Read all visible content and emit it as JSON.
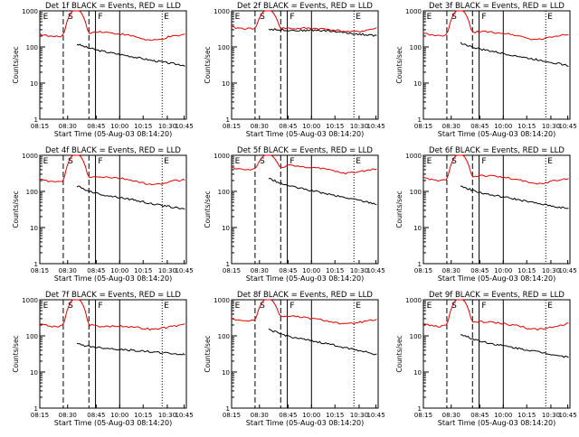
{
  "figure": {
    "title_template": "Det {n}f BLACK = Events, RED = LLD",
    "xlabel": "Start Time (05-Aug-03 08:14:20)",
    "ylabel": "Counts/sec",
    "colors": {
      "events": "#000000",
      "lld": "#e00000",
      "axis": "#000000",
      "background": "#ffffff"
    }
  },
  "chart_data": [
    {
      "type": "line",
      "detector": "1f",
      "title": "Det 1f BLACK = Events, RED = LLD",
      "xlabel": "Start Time (05-Aug-03 08:14:20)",
      "ylabel": "Counts/sec",
      "xlim": [
        "08:15",
        "10:52"
      ],
      "ylim": [
        1,
        1000
      ],
      "yscale": "log",
      "xticks": [
        "08:15",
        "08:30",
        "08:45",
        "10:00",
        "10:15",
        "10:30",
        "10:45"
      ],
      "yticks": [
        "1",
        "10",
        "100",
        "1000"
      ],
      "region_labels": [
        "E",
        "S",
        "F",
        "E"
      ],
      "series": [
        {
          "name": "Events",
          "color": "#000000",
          "start": "08:50",
          "values": [
            120,
            95,
            80,
            70,
            62,
            55,
            48,
            42,
            38,
            34,
            31
          ]
        },
        {
          "name": "LLD",
          "color": "#e00000",
          "values": [
            230,
            200,
            190,
            210,
            1000,
            1000,
            230,
            270,
            260,
            240,
            230,
            210,
            190,
            160,
            150,
            160,
            190,
            200,
            220
          ]
        }
      ]
    },
    {
      "type": "line",
      "detector": "2f",
      "title": "Det 2f BLACK = Events, RED = LLD",
      "xlabel": "Start Time (05-Aug-03 08:14:20)",
      "ylabel": "Counts/sec",
      "xlim": [
        "08:15",
        "10:52"
      ],
      "ylim": [
        1,
        1000
      ],
      "yscale": "log",
      "xticks": [
        "08:15",
        "08:30",
        "08:45",
        "10:00",
        "10:15",
        "10:30",
        "10:45"
      ],
      "yticks": [
        "1",
        "10",
        "100",
        "1000"
      ],
      "region_labels": [
        "E",
        "S",
        "F",
        "E"
      ],
      "series": [
        {
          "name": "Events",
          "color": "#000000",
          "start": "08:50",
          "values": [
            310,
            300,
            290,
            285,
            290,
            285,
            270,
            250,
            230,
            220,
            205
          ]
        },
        {
          "name": "LLD",
          "color": "#e00000",
          "values": [
            350,
            330,
            320,
            330,
            1000,
            1000,
            330,
            330,
            320,
            330,
            330,
            320,
            310,
            290,
            270,
            260,
            270,
            300,
            330
          ]
        }
      ]
    },
    {
      "type": "line",
      "detector": "3f",
      "title": "Det 3f BLACK = Events, RED = LLD",
      "xlabel": "Start Time (05-Aug-03 08:14:20)",
      "ylabel": "Counts/sec",
      "xlim": [
        "08:15",
        "10:52"
      ],
      "ylim": [
        1,
        1000
      ],
      "yscale": "log",
      "xticks": [
        "08:15",
        "08:30",
        "08:45",
        "10:00",
        "10:15",
        "10:30",
        "10:45"
      ],
      "yticks": [
        "1",
        "10",
        "100",
        "1000"
      ],
      "region_labels": [
        "E",
        "S",
        "F",
        "E"
      ],
      "series": [
        {
          "name": "Events",
          "color": "#000000",
          "start": "08:50",
          "values": [
            130,
            100,
            85,
            75,
            65,
            58,
            50,
            45,
            40,
            35,
            30
          ]
        },
        {
          "name": "LLD",
          "color": "#e00000",
          "values": [
            240,
            210,
            200,
            220,
            1000,
            1000,
            240,
            270,
            260,
            250,
            240,
            220,
            200,
            170,
            160,
            170,
            190,
            210,
            230
          ]
        }
      ]
    },
    {
      "type": "line",
      "detector": "4f",
      "title": "Det 4f BLACK = Events, RED = LLD",
      "xlabel": "Start Time (05-Aug-03 08:14:20)",
      "ylabel": "Counts/sec",
      "xlim": [
        "08:15",
        "10:52"
      ],
      "ylim": [
        1,
        1000
      ],
      "yscale": "log",
      "xticks": [
        "08:15",
        "08:30",
        "08:45",
        "10:00",
        "10:15",
        "10:30",
        "10:45"
      ],
      "yticks": [
        "1",
        "10",
        "100",
        "1000"
      ],
      "region_labels": [
        "E",
        "S",
        "F",
        "E"
      ],
      "series": [
        {
          "name": "Events",
          "color": "#000000",
          "start": "08:50",
          "values": [
            140,
            105,
            85,
            75,
            68,
            60,
            52,
            45,
            40,
            36,
            32
          ]
        },
        {
          "name": "LLD",
          "color": "#e00000",
          "values": [
            220,
            190,
            180,
            200,
            1000,
            1000,
            230,
            260,
            250,
            240,
            230,
            210,
            190,
            165,
            150,
            160,
            185,
            200,
            215
          ]
        }
      ]
    },
    {
      "type": "line",
      "detector": "5f",
      "title": "Det 5f BLACK = Events, RED = LLD",
      "xlabel": "Start Time (05-Aug-03 08:14:20)",
      "ylabel": "Counts/sec",
      "xlim": [
        "08:15",
        "10:52"
      ],
      "ylim": [
        1,
        1000
      ],
      "yscale": "log",
      "xticks": [
        "08:15",
        "08:30",
        "08:45",
        "10:00",
        "10:15",
        "10:30",
        "10:45"
      ],
      "yticks": [
        "1",
        "10",
        "100",
        "1000"
      ],
      "region_labels": [
        "E",
        "S",
        "F",
        "E"
      ],
      "series": [
        {
          "name": "Events",
          "color": "#000000",
          "start": "08:50",
          "values": [
            230,
            170,
            140,
            120,
            105,
            90,
            78,
            68,
            60,
            52,
            45
          ]
        },
        {
          "name": "LLD",
          "color": "#e00000",
          "values": [
            450,
            420,
            400,
            430,
            1000,
            1000,
            450,
            520,
            500,
            480,
            460,
            430,
            400,
            350,
            320,
            330,
            360,
            390,
            420
          ]
        }
      ]
    },
    {
      "type": "line",
      "detector": "6f",
      "title": "Det 6f BLACK = Events, RED = LLD",
      "xlabel": "Start Time (05-Aug-03 08:14:20)",
      "ylabel": "Counts/sec",
      "xlim": [
        "08:15",
        "10:52"
      ],
      "ylim": [
        1,
        1000
      ],
      "yscale": "log",
      "xticks": [
        "08:15",
        "08:30",
        "08:45",
        "10:00",
        "10:15",
        "10:30",
        "10:45"
      ],
      "yticks": [
        "1",
        "10",
        "100",
        "1000"
      ],
      "region_labels": [
        "E",
        "S",
        "F",
        "E"
      ],
      "series": [
        {
          "name": "Events",
          "color": "#000000",
          "start": "08:50",
          "values": [
            140,
            110,
            90,
            78,
            70,
            62,
            54,
            47,
            42,
            37,
            33
          ]
        },
        {
          "name": "LLD",
          "color": "#e00000",
          "values": [
            240,
            210,
            200,
            220,
            1000,
            1000,
            250,
            280,
            270,
            260,
            245,
            225,
            205,
            175,
            160,
            170,
            195,
            210,
            230
          ]
        }
      ]
    },
    {
      "type": "line",
      "detector": "7f",
      "title": "Det 7f BLACK = Events, RED = LLD",
      "xlabel": "Start Time (05-Aug-03 08:14:20)",
      "ylabel": "Counts/sec",
      "xlim": [
        "08:15",
        "10:52"
      ],
      "ylim": [
        1,
        1000
      ],
      "yscale": "log",
      "xticks": [
        "08:15",
        "08:30",
        "08:45",
        "10:00",
        "10:15",
        "10:30",
        "10:45"
      ],
      "yticks": [
        "1",
        "10",
        "100",
        "1000"
      ],
      "region_labels": [
        "E",
        "S",
        "F",
        "E"
      ],
      "series": [
        {
          "name": "Events",
          "color": "#000000",
          "start": "08:50",
          "values": [
            60,
            52,
            48,
            45,
            42,
            40,
            38,
            36,
            34,
            32,
            30
          ]
        },
        {
          "name": "LLD",
          "color": "#e00000",
          "values": [
            220,
            190,
            180,
            200,
            1000,
            1000,
            200,
            190,
            180,
            185,
            190,
            180,
            170,
            160,
            150,
            160,
            175,
            190,
            210
          ]
        }
      ]
    },
    {
      "type": "line",
      "detector": "8f",
      "title": "Det 8f BLACK = Events, RED = LLD",
      "xlabel": "Start Time (05-Aug-03 08:14:20)",
      "ylabel": "Counts/sec",
      "xlim": [
        "08:15",
        "10:52"
      ],
      "ylim": [
        1,
        1000
      ],
      "yscale": "log",
      "xticks": [
        "08:15",
        "08:30",
        "08:45",
        "10:00",
        "10:15",
        "10:30",
        "10:45"
      ],
      "yticks": [
        "1",
        "10",
        "100",
        "1000"
      ],
      "region_labels": [
        "E",
        "S",
        "F",
        "E"
      ],
      "series": [
        {
          "name": "Events",
          "color": "#000000",
          "start": "08:50",
          "values": [
            150,
            115,
            95,
            82,
            72,
            64,
            56,
            48,
            42,
            36,
            30
          ]
        },
        {
          "name": "LLD",
          "color": "#e00000",
          "values": [
            300,
            270,
            260,
            280,
            1000,
            1000,
            330,
            360,
            340,
            320,
            300,
            280,
            260,
            230,
            210,
            220,
            240,
            260,
            280
          ]
        }
      ]
    },
    {
      "type": "line",
      "detector": "9f",
      "title": "Det 9f BLACK = Events, RED = LLD",
      "xlabel": "Start Time (05-Aug-03 08:14:20)",
      "ylabel": "Counts/sec",
      "xlim": [
        "08:15",
        "10:52"
      ],
      "ylim": [
        1,
        1000
      ],
      "yscale": "log",
      "xticks": [
        "08:15",
        "08:30",
        "08:45",
        "10:00",
        "10:15",
        "10:30",
        "10:45"
      ],
      "yticks": [
        "1",
        "10",
        "100",
        "1000"
      ],
      "region_labels": [
        "E",
        "S",
        "F",
        "E"
      ],
      "series": [
        {
          "name": "Events",
          "color": "#000000",
          "start": "08:50",
          "values": [
            110,
            85,
            70,
            60,
            53,
            47,
            42,
            37,
            33,
            29,
            25
          ]
        },
        {
          "name": "LLD",
          "color": "#e00000",
          "values": [
            220,
            190,
            180,
            200,
            1000,
            1000,
            230,
            250,
            240,
            230,
            220,
            200,
            185,
            160,
            150,
            160,
            180,
            200,
            215
          ]
        }
      ]
    }
  ]
}
